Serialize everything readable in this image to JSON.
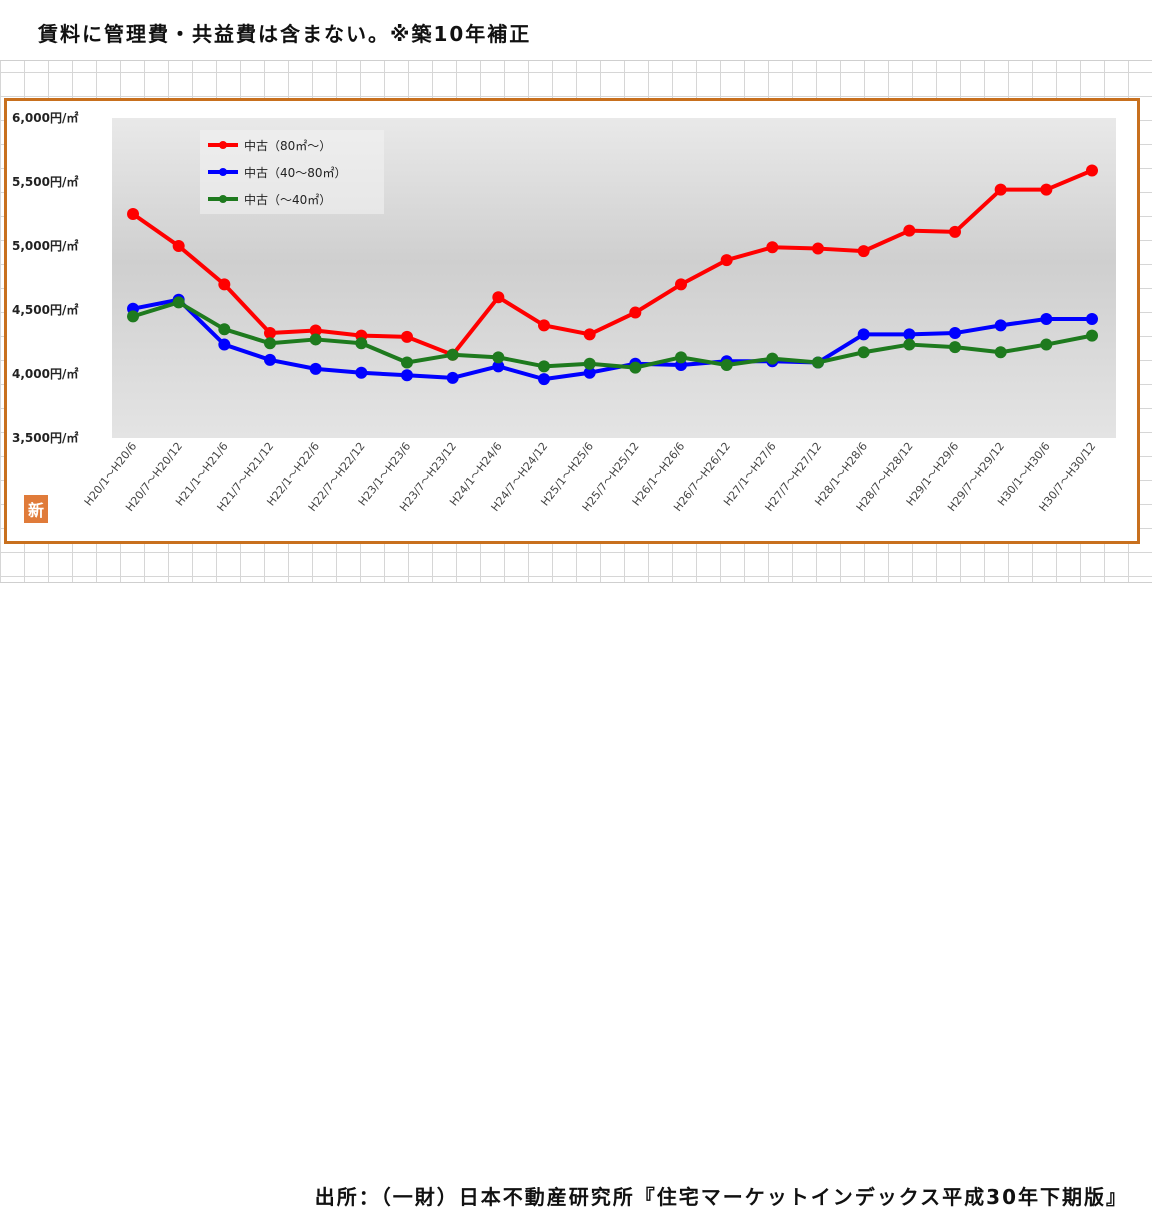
{
  "header": {
    "note": "賃料に管理費・共益費は含まない。※築10年補正"
  },
  "footer": {
    "source": "出所：（一財）日本不動産研究所『住宅マーケットインデックス平成30年下期版』"
  },
  "badge": {
    "label": "新"
  },
  "colors": {
    "frame": "#c8701e",
    "series_red": "#ff0000",
    "series_blue": "#0000ff",
    "series_green": "#1e7a1e"
  },
  "chart_data": {
    "type": "line",
    "title": "",
    "xlabel": "",
    "ylabel": "",
    "ylim": [
      3500,
      6000
    ],
    "yticks": [
      3500,
      4000,
      4500,
      5000,
      5500,
      6000
    ],
    "ytick_labels": [
      "3,500円/㎡",
      "4,000円/㎡",
      "4,500円/㎡",
      "5,000円/㎡",
      "5,500円/㎡",
      "6,000円/㎡"
    ],
    "grid": false,
    "legend_position": "top-left",
    "categories": [
      "H20/1～H20/6",
      "H20/7～H20/12",
      "H21/1～H21/6",
      "H21/7～H21/12",
      "H22/1～H22/6",
      "H22/7～H22/12",
      "H23/1～H23/6",
      "H23/7～H23/12",
      "H24/1～H24/6",
      "H24/7～H24/12",
      "H25/1～H25/6",
      "H25/7～H25/12",
      "H26/1～H26/6",
      "H26/7～H26/12",
      "H27/1～H27/6",
      "H27/7～H27/12",
      "H28/1～H28/6",
      "H28/7～H28/12",
      "H29/1～H29/6",
      "H29/7～H29/12",
      "H30/1～H30/6",
      "H30/7～H30/12"
    ],
    "series": [
      {
        "name": "中古（80㎡～）",
        "color": "#ff0000",
        "values": [
          5250,
          5000,
          4700,
          4320,
          4340,
          4300,
          4290,
          4150,
          4600,
          4380,
          4310,
          4480,
          4700,
          4890,
          4990,
          4980,
          4960,
          5120,
          5110,
          5440,
          5440,
          5590
        ]
      },
      {
        "name": "中古（40～80㎡）",
        "color": "#0000ff",
        "values": [
          4510,
          4580,
          4230,
          4110,
          4040,
          4010,
          3990,
          3970,
          4060,
          3960,
          4010,
          4080,
          4070,
          4100,
          4100,
          4090,
          4310,
          4310,
          4320,
          4380,
          4430,
          4430
        ]
      },
      {
        "name": "中古（～40㎡）",
        "color": "#1e7a1e",
        "values": [
          4450,
          4560,
          4350,
          4240,
          4270,
          4240,
          4090,
          4150,
          4130,
          4060,
          4080,
          4050,
          4130,
          4070,
          4120,
          4090,
          4170,
          4230,
          4210,
          4170,
          4230,
          4300
        ]
      }
    ]
  }
}
